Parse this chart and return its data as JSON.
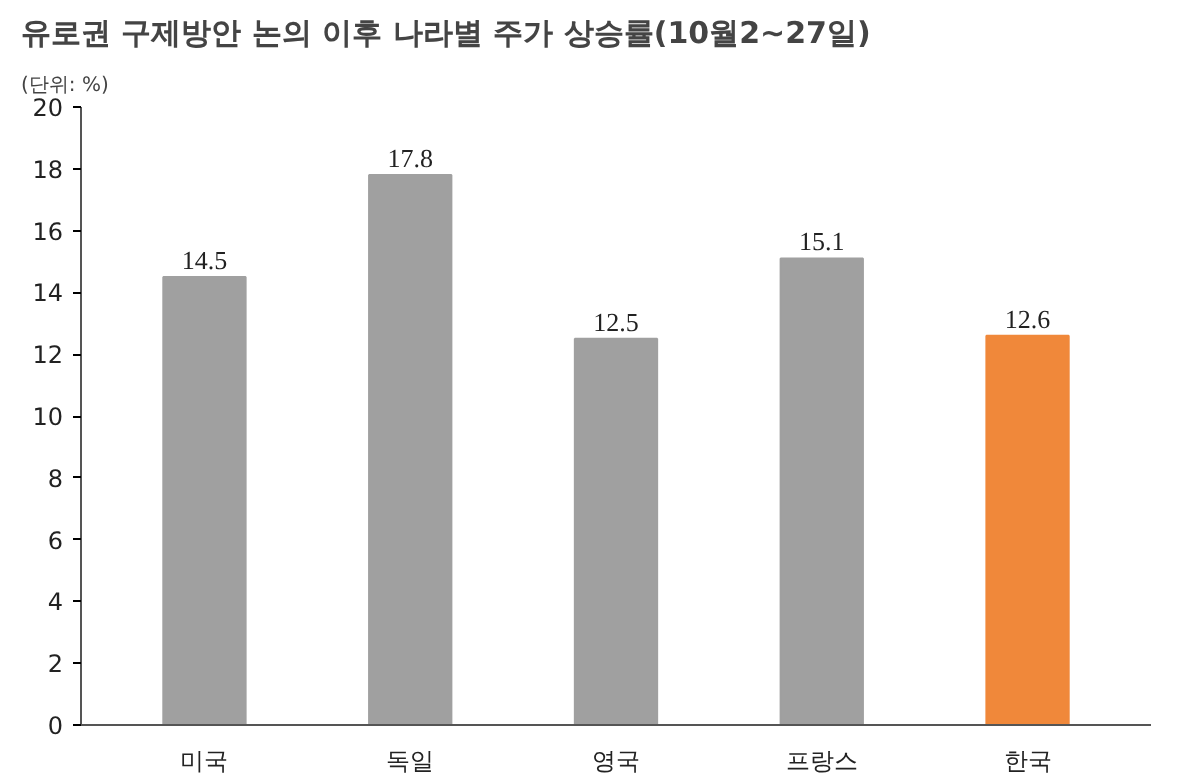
{
  "chart_data": {
    "type": "bar",
    "title": "유로권 구제방안 논의 이후 나라별 주가 상승률(10월2~27일)",
    "subtitle": "(단위: %)",
    "categories": [
      "미국",
      "독일",
      "영국",
      "프랑스",
      "한국"
    ],
    "values": [
      14.5,
      17.8,
      12.5,
      15.1,
      12.6
    ],
    "colors": [
      "#a0a0a0",
      "#a0a0a0",
      "#a0a0a0",
      "#a0a0a0",
      "#f0883a"
    ],
    "ylim": [
      0,
      20
    ],
    "yticks": [
      0,
      2,
      4,
      6,
      8,
      10,
      12,
      14,
      16,
      18,
      20
    ],
    "grid": false,
    "data_labels": true
  }
}
